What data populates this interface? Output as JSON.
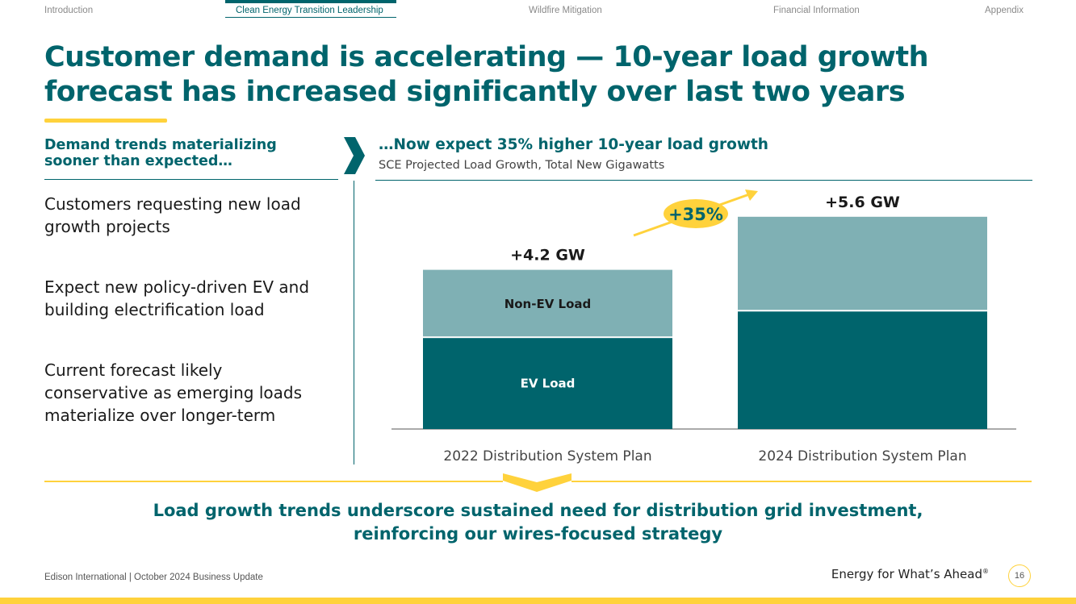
{
  "nav": {
    "items": [
      {
        "label": "Introduction"
      },
      {
        "label": "Clean Energy Transition Leadership"
      },
      {
        "label": "Wildfire Mitigation"
      },
      {
        "label": "Financial Information"
      },
      {
        "label": "Appendix"
      }
    ],
    "active_index": 1
  },
  "title": {
    "line1": "Customer demand is accelerating — 10-year load growth",
    "line2": "forecast has increased significantly over last two years"
  },
  "left": {
    "heading_line1": "Demand trends materializing",
    "heading_line2": "sooner than expected…",
    "bullets": [
      {
        "line1": "Customers requesting new load",
        "line2": "growth projects"
      },
      {
        "line1": "Expect new policy-driven EV and",
        "line2": "building electrification load"
      },
      {
        "line1": "Current forecast likely",
        "line2": "conservative as emerging loads",
        "line3": "materialize over longer-term"
      }
    ]
  },
  "right": {
    "heading": "…Now expect 35% higher 10-year load growth",
    "subheading": "SCE Projected Load Growth, Total New Gigawatts"
  },
  "chart_data": {
    "type": "bar",
    "stacked": true,
    "title": "SCE Projected Load Growth, Total New Gigawatts",
    "categories": [
      "2022 Distribution System Plan",
      "2024 Distribution System Plan"
    ],
    "series": [
      {
        "name": "EV Load",
        "values": [
          2.4,
          3.1
        ]
      },
      {
        "name": "Non-EV Load",
        "values": [
          1.8,
          2.5
        ]
      }
    ],
    "totals_labels": [
      "+4.2 GW",
      "+5.6 GW"
    ],
    "totals": [
      4.2,
      5.6
    ],
    "annotation": "+35%",
    "ylim": [
      0,
      6
    ],
    "colors": {
      "EV Load": "#00646c",
      "Non-EV Load": "#7fb0b4",
      "annotation": "#ffd23c"
    }
  },
  "conclusion": {
    "line1": "Load growth trends underscore sustained need for distribution grid investment,",
    "line2": "reinforcing our wires-focused strategy"
  },
  "footer": {
    "left": "Edison International |  October 2024 Business Update",
    "tagline": "Energy for What’s Ahead",
    "registered": "®",
    "page_number": "16"
  },
  "colors": {
    "brand_teal": "#00646c",
    "accent_yellow": "#ffd23c"
  }
}
